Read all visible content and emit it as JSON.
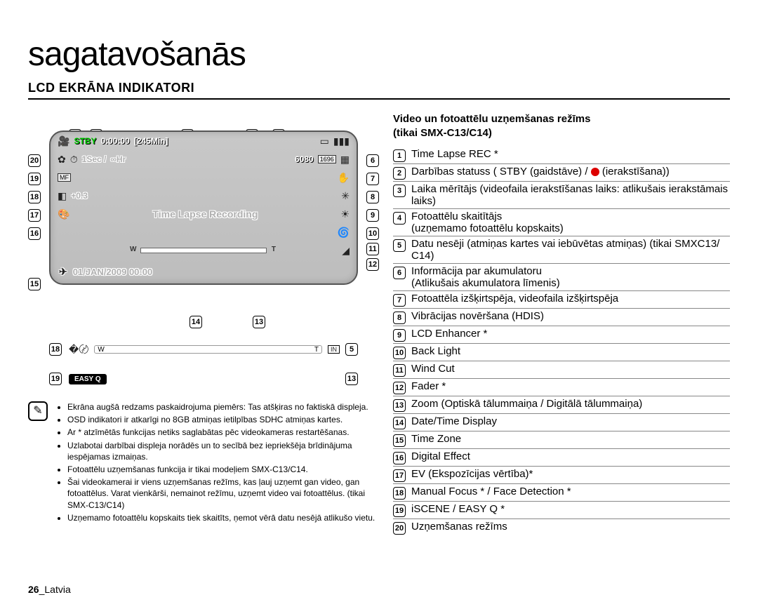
{
  "title": "sagatavošanās",
  "section": "LCD EKRĀNA INDIKATORI",
  "page_number": "26",
  "page_region": "Latvia",
  "right_heading_line1": "Video un fotoattēlu uzņemšanas režīms",
  "right_heading_line2": "(tikai SMX-C13/C14)",
  "lcd": {
    "stby": "STBY",
    "timer": "0:00:00",
    "remain": "[245Min]",
    "interval": "1Sec /",
    "duration": "∞Hr",
    "photo_count": "6080",
    "ev": "+0.3",
    "center": "Time Lapse Recording",
    "date": "01/JAN/2009 00:00",
    "resolution_box": "1696"
  },
  "easyq": "EASY Q",
  "callouts_top": [
    "1",
    "2",
    "3",
    "4",
    "5"
  ],
  "callouts_right": [
    "6",
    "7",
    "8",
    "9",
    "10",
    "11",
    "12"
  ],
  "callouts_left": [
    "20",
    "19",
    "18",
    "17",
    "16"
  ],
  "callouts_bottom_left": "15",
  "callouts_below": [
    "14",
    "13"
  ],
  "subbar1_left": "18",
  "subbar1_right": "5",
  "subbar2_left": "19",
  "subbar2_mid": "13",
  "notes": [
    "Ekrāna augšā redzams paskaidrojuma piemērs: Tas atšķiras no faktiskā displeja.",
    "OSD indikatori ir atkarīgi no 8GB atmiņas ietilpības SDHC atmiņas kartes.",
    "Ar * atzīmētās funkcijas netiks saglabātas pēc videokameras restartēšanas.",
    "Uzlabotai darbībai displeja norādēs un to secībā bez iepriekšēja brīdinājuma iespējamas izmaiņas.",
    "Fotoattēlu uzņemšanas funkcija ir tikai modeļiem SMX-C13/C14.",
    "Šai videokamerai ir viens uzņemšanas režīms, kas ļauj uzņemt gan video, gan fotoattēlus. Varat vienkārši, nemainot režīmu, uzņemt video vai fotoattēlus. (tikai SMX-C13/C14)",
    "Uzņemamo fotoattēlu kopskaits tiek skaitīts, ņemot vērā datu nesējā atlikušo vietu."
  ],
  "indicators": [
    {
      "n": "1",
      "t": "Time Lapse REC *"
    },
    {
      "n": "2",
      "t": "Darbības statuss\n( STBY (gaidstāve) / ● (ierakstīšana))",
      "dot": true
    },
    {
      "n": "3",
      "t": "Laika mērītājs (videofaila ierakstīšanas laiks: atlikušais ierakstāmais laiks)"
    },
    {
      "n": "4",
      "t": "Fotoattēlu skaitītājs\n(uzņemamo fotoattēlu kopskaits)"
    },
    {
      "n": "5",
      "t": "Datu nesēji (atmiņas kartes vai iebūvētas atmiņas) (tikai SMXC13/ C14)"
    },
    {
      "n": "6",
      "t": "Informācija par akumulatoru\n(Atlikušais akumulatora līmenis)"
    },
    {
      "n": "7",
      "t": "Fotoattēla izšķirtspēja, videofaila izšķirtspēja"
    },
    {
      "n": "8",
      "t": "Vibrācijas novēršana (HDIS)"
    },
    {
      "n": "9",
      "t": "LCD Enhancer *"
    },
    {
      "n": "10",
      "t": "Back Light"
    },
    {
      "n": "11",
      "t": "Wind Cut"
    },
    {
      "n": "12",
      "t": "Fader *"
    },
    {
      "n": "13",
      "t": "Zoom (Optiskā tālummaiņa / Digitālā tālummaiņa)"
    },
    {
      "n": "14",
      "t": "Date/Time Display"
    },
    {
      "n": "15",
      "t": "Time Zone"
    },
    {
      "n": "16",
      "t": "Digital Effect"
    },
    {
      "n": "17",
      "t": "EV (Ekspozīcijas vērtība)*"
    },
    {
      "n": "18",
      "t": "Manual Focus * / Face Detection *"
    },
    {
      "n": "19",
      "t": "iSCENE / EASY Q *"
    },
    {
      "n": "20",
      "t": "Uzņemšanas režīms"
    }
  ]
}
